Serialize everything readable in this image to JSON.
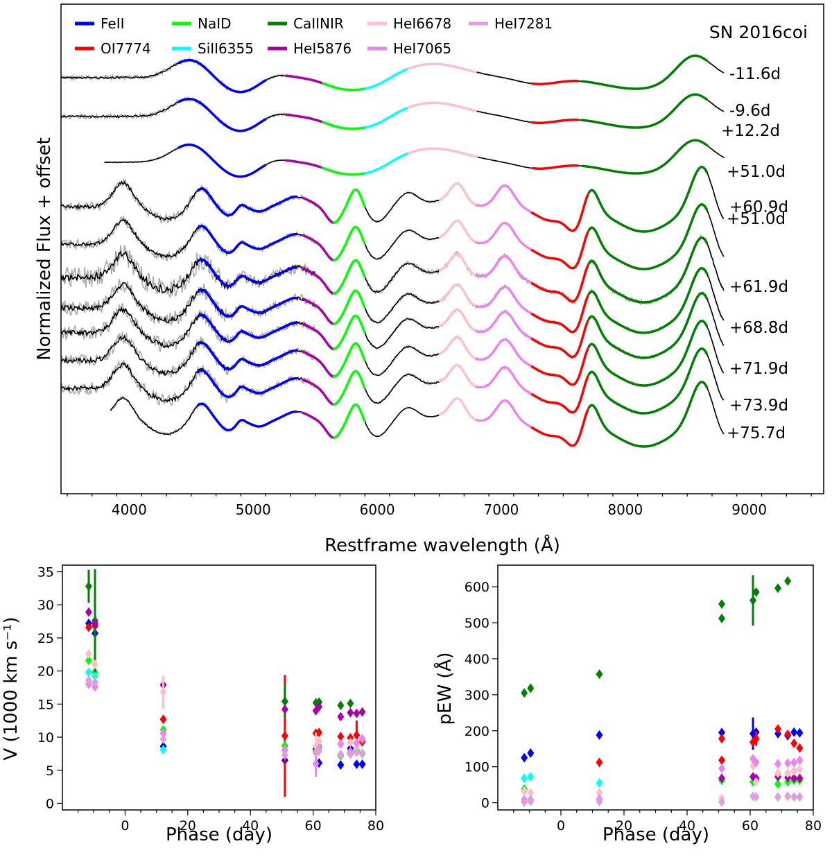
{
  "chart_data": [
    {
      "type": "line",
      "title": "SN 2016coi",
      "xlabel": "Restframe wavelength (Å)",
      "ylabel": "Normalized Flux + offset",
      "xlim": [
        3450,
        9600
      ],
      "xticks": [
        4000,
        5000,
        6000,
        7000,
        8000,
        9000
      ],
      "legend": [
        {
          "name": "FeII",
          "color": "#0000ff"
        },
        {
          "name": "OI7774",
          "color": "#ff0000"
        },
        {
          "name": "NaID",
          "color": "#00ff00"
        },
        {
          "name": "SiII6355",
          "color": "#00ffff"
        },
        {
          "name": "CaIINIR",
          "color": "#008000"
        },
        {
          "name": "HeI5876",
          "color": "#aa00aa"
        },
        {
          "name": "HeI6678",
          "color": "#ffc0cb"
        },
        {
          "name": "HeI7065",
          "color": "#ee82ee"
        },
        {
          "name": "HeI7281",
          "color": "#dda0dd"
        }
      ],
      "spectra": [
        {
          "label": "-11.6d",
          "start": 3450,
          "end": 8800,
          "noise": 0.3,
          "features": [
            "FeII",
            "HeI5876",
            "NaID",
            "SiII6355",
            "HeI6678",
            "OI7774",
            "CaIINIR"
          ]
        },
        {
          "label": "-9.6d",
          "start": 3450,
          "end": 8800,
          "noise": 0.3,
          "features": [
            "FeII",
            "HeI5876",
            "NaID",
            "SiII6355",
            "HeI6678",
            "OI7774",
            "CaIINIR"
          ]
        },
        {
          "label": "+12.2d",
          "start": 3800,
          "end": 8800,
          "noise": 0.1,
          "features": [
            "FeII",
            "HeI5876",
            "NaID",
            "SiII6355",
            "HeI6678",
            "OI7774",
            "CaIINIR"
          ]
        },
        {
          "label": "+51.0d",
          "start": 3450,
          "end": 8800,
          "noise": 0.6,
          "features": [
            "FeII",
            "HeI5876",
            "NaID",
            "HeI6678",
            "HeI7065",
            "OI7774",
            "CaIINIR"
          ]
        },
        {
          "label": "+60.9d",
          "start": 3450,
          "end": 8800,
          "noise": 0.6,
          "features": [
            "FeII",
            "HeI5876",
            "NaID",
            "HeI6678",
            "HeI7065",
            "OI7774",
            "CaIINIR"
          ]
        },
        {
          "label": "+51.0d",
          "start": 3450,
          "end": 8800,
          "noise": 1.4,
          "features": [
            "FeII",
            "HeI5876",
            "NaID",
            "HeI6678",
            "HeI7065",
            "OI7774",
            "CaIINIR"
          ]
        },
        {
          "label": "+61.9d",
          "start": 3450,
          "end": 8800,
          "noise": 1.0,
          "features": [
            "FeII",
            "HeI5876",
            "NaID",
            "HeI6678",
            "HeI7065",
            "OI7774",
            "CaIINIR"
          ]
        },
        {
          "label": "+68.8d",
          "start": 3450,
          "end": 8800,
          "noise": 0.9,
          "features": [
            "FeII",
            "HeI5876",
            "NaID",
            "HeI6678",
            "HeI7065",
            "OI7774",
            "CaIINIR"
          ]
        },
        {
          "label": "+71.9d",
          "start": 3450,
          "end": 8800,
          "noise": 0.8,
          "features": [
            "FeII",
            "HeI5876",
            "NaID",
            "HeI6678",
            "HeI7065",
            "OI7774",
            "CaIINIR"
          ]
        },
        {
          "label": "+73.9d",
          "start": 3450,
          "end": 8800,
          "noise": 0.8,
          "features": [
            "FeII",
            "HeI5876",
            "NaID",
            "HeI6678",
            "HeI7065",
            "OI7774",
            "CaIINIR"
          ]
        },
        {
          "label": "+75.7d",
          "start": 3850,
          "end": 8800,
          "noise": 0.25,
          "features": [
            "FeII",
            "HeI5876",
            "NaID",
            "HeI6678",
            "HeI7065",
            "OI7774",
            "CaIINIR"
          ]
        }
      ]
    },
    {
      "type": "scatter",
      "xlabel": "Phase (day)",
      "ylabel": "V (1000 km s⁻¹)",
      "xlim": [
        -20,
        80
      ],
      "ylim": [
        -1,
        36
      ],
      "xticks": [
        0,
        20,
        40,
        60,
        80
      ],
      "yticks": [
        0,
        5,
        10,
        15,
        20,
        25,
        30,
        35
      ],
      "series": [
        {
          "name": "FeII",
          "color": "#0000ff",
          "points": [
            [
              -11.6,
              27.2
            ],
            [
              -9.6,
              25.7
            ],
            [
              12.2,
              8.6
            ],
            [
              51.0,
              6.5
            ],
            [
              60.9,
              8.2
            ],
            [
              61.9,
              6.1
            ],
            [
              68.8,
              5.8
            ],
            [
              71.9,
              8.3
            ],
            [
              73.9,
              5.9
            ],
            [
              75.7,
              5.9
            ]
          ],
          "errors": [
            [
              -9.6,
              3.5
            ]
          ]
        },
        {
          "name": "OI7774",
          "color": "#ff0000",
          "points": [
            [
              -11.6,
              26.6
            ],
            [
              -9.6,
              26.8
            ],
            [
              12.2,
              12.7
            ],
            [
              51.0,
              10.2
            ],
            [
              60.9,
              10.6
            ],
            [
              61.9,
              10.7
            ],
            [
              68.8,
              10.1
            ],
            [
              71.9,
              9.9
            ],
            [
              73.9,
              10.3
            ],
            [
              75.7,
              9.3
            ]
          ],
          "errors": [
            [
              51.0,
              9.2
            ],
            [
              73.9,
              2.2
            ]
          ]
        },
        {
          "name": "NaID",
          "color": "#00ff00",
          "points": [
            [
              -11.6,
              21.6
            ],
            [
              -9.6,
              19.8
            ],
            [
              12.2,
              11.1
            ],
            [
              51.0,
              8.7
            ],
            [
              60.9,
              7.9
            ],
            [
              61.9,
              8.6
            ],
            [
              68.8,
              7.2
            ],
            [
              71.9,
              7.6
            ],
            [
              73.9,
              8.0
            ],
            [
              75.7,
              7.5
            ]
          ],
          "errors": []
        },
        {
          "name": "SiII6355",
          "color": "#00ffff",
          "points": [
            [
              -11.6,
              19.8
            ],
            [
              -9.6,
              19.2
            ],
            [
              12.2,
              8.1
            ]
          ],
          "errors": []
        },
        {
          "name": "CaIINIR",
          "color": "#008000",
          "points": [
            [
              -11.6,
              32.8
            ],
            [
              -9.6,
              27.6
            ],
            [
              51.0,
              15.4
            ],
            [
              60.9,
              15.2
            ],
            [
              61.9,
              15.3
            ],
            [
              68.8,
              14.8
            ],
            [
              71.9,
              15.1
            ]
          ],
          "errors": [
            [
              -11.6,
              2.5
            ],
            [
              -9.6,
              7.8
            ],
            [
              51.0,
              2.5
            ]
          ]
        },
        {
          "name": "HeI5876",
          "color": "#aa00aa",
          "points": [
            [
              -11.6,
              28.9
            ],
            [
              -9.6,
              27.2
            ],
            [
              12.2,
              17.9
            ],
            [
              51.0,
              14.2
            ],
            [
              60.9,
              14.0
            ],
            [
              61.9,
              14.6
            ],
            [
              68.8,
              13.1
            ],
            [
              71.9,
              13.7
            ],
            [
              73.9,
              13.6
            ],
            [
              75.7,
              13.8
            ]
          ],
          "errors": []
        },
        {
          "name": "HeI6678",
          "color": "#ffc0cb",
          "points": [
            [
              -11.6,
              22.6
            ],
            [
              -9.6,
              21.0
            ],
            [
              12.2,
              16.8
            ],
            [
              51.0,
              7.9
            ],
            [
              60.9,
              8.7
            ],
            [
              61.9,
              9.4
            ],
            [
              68.8,
              8.9
            ],
            [
              71.9,
              9.2
            ],
            [
              73.9,
              8.4
            ],
            [
              75.7,
              9.8
            ]
          ],
          "errors": [
            [
              12.2,
              2.5
            ],
            [
              60.9,
              2.0
            ]
          ]
        },
        {
          "name": "HeI7065",
          "color": "#ee82ee",
          "points": [
            [
              -11.6,
              18.0
            ],
            [
              -9.6,
              17.6
            ],
            [
              12.2,
              10.6
            ],
            [
              51.0,
              8.1
            ],
            [
              60.9,
              6.0
            ],
            [
              61.9,
              8.3
            ],
            [
              68.8,
              9.0
            ],
            [
              71.9,
              7.8
            ],
            [
              73.9,
              9.1
            ],
            [
              75.7,
              9.7
            ]
          ],
          "errors": [
            [
              60.9,
              2.0
            ]
          ]
        },
        {
          "name": "HeI7281",
          "color": "#dda0dd",
          "points": [
            [
              -11.6,
              18.6
            ],
            [
              -9.6,
              18.3
            ],
            [
              12.2,
              9.7
            ],
            [
              51.0,
              7.3
            ],
            [
              60.9,
              7.6
            ],
            [
              61.9,
              7.9
            ],
            [
              68.8,
              7.4
            ],
            [
              71.9,
              7.4
            ],
            [
              73.9,
              7.7
            ],
            [
              75.7,
              7.6
            ]
          ],
          "errors": []
        }
      ]
    },
    {
      "type": "scatter",
      "xlabel": "Phase (day)",
      "ylabel": "pEW (Å)",
      "xlim": [
        -20,
        80
      ],
      "ylim": [
        -20,
        660
      ],
      "xticks": [
        0,
        20,
        40,
        60,
        80
      ],
      "yticks": [
        0,
        100,
        200,
        300,
        400,
        500,
        600
      ],
      "series": [
        {
          "name": "FeII",
          "color": "#0000ff",
          "points": [
            [
              -11.6,
              125
            ],
            [
              -9.6,
              138
            ],
            [
              12.2,
              188
            ],
            [
              51.0,
              195
            ],
            [
              60.9,
              192
            ],
            [
              61.9,
              196
            ],
            [
              68.8,
              192
            ],
            [
              71.9,
              186
            ],
            [
              73.9,
              196
            ],
            [
              75.7,
              194
            ]
          ],
          "errors": [
            [
              60.9,
              45
            ]
          ]
        },
        {
          "name": "OI7774",
          "color": "#ff0000",
          "points": [
            [
              12.2,
              112
            ],
            [
              51.0,
              178
            ],
            [
              51.0,
              118
            ],
            [
              60.9,
              168
            ],
            [
              61.9,
              178
            ],
            [
              68.8,
              205
            ],
            [
              71.9,
              190
            ],
            [
              73.9,
              165
            ],
            [
              75.7,
              152
            ]
          ],
          "errors": [
            [
              61.9,
              20
            ]
          ]
        },
        {
          "name": "NaID",
          "color": "#00ff00",
          "points": [
            [
              -11.6,
              38
            ],
            [
              51.0,
              62
            ],
            [
              60.9,
              58
            ],
            [
              61.9,
              62
            ],
            [
              68.8,
              52
            ],
            [
              71.9,
              58
            ],
            [
              73.9,
              62
            ],
            [
              75.7,
              62
            ]
          ],
          "errors": []
        },
        {
          "name": "SiII6355",
          "color": "#00ffff",
          "points": [
            [
              -11.6,
              68
            ],
            [
              -9.6,
              72
            ],
            [
              12.2,
              55
            ]
          ],
          "errors": []
        },
        {
          "name": "CaIINIR",
          "color": "#008000",
          "points": [
            [
              -11.6,
              305
            ],
            [
              -9.6,
              318
            ],
            [
              12.2,
              357
            ],
            [
              51.0,
              552
            ],
            [
              51.0,
              512
            ],
            [
              60.9,
              562
            ],
            [
              61.9,
              585
            ],
            [
              68.8,
              596
            ],
            [
              71.9,
              616
            ]
          ],
          "errors": [
            [
              60.9,
              70
            ]
          ]
        },
        {
          "name": "HeI5876",
          "color": "#aa00aa",
          "points": [
            [
              51.0,
              68
            ],
            [
              60.9,
              72
            ],
            [
              61.9,
              68
            ],
            [
              68.8,
              72
            ],
            [
              71.9,
              70
            ],
            [
              73.9,
              68
            ],
            [
              75.7,
              68
            ]
          ],
          "errors": []
        },
        {
          "name": "HeI6678",
          "color": "#ffc0cb",
          "points": [
            [
              -11.6,
              32
            ],
            [
              -9.6,
              28
            ],
            [
              12.2,
              28
            ],
            [
              51.0,
              12
            ],
            [
              60.9,
              102
            ],
            [
              61.9,
              58
            ],
            [
              68.8,
              82
            ],
            [
              71.9,
              82
            ],
            [
              73.9,
              88
            ],
            [
              75.7,
              92
            ]
          ],
          "errors": []
        },
        {
          "name": "HeI7065",
          "color": "#ee82ee",
          "points": [
            [
              -11.6,
              8
            ],
            [
              -9.6,
              8
            ],
            [
              12.2,
              10
            ],
            [
              51.0,
              95
            ],
            [
              60.9,
              122
            ],
            [
              61.9,
              112
            ],
            [
              68.8,
              108
            ],
            [
              71.9,
              110
            ],
            [
              73.9,
              112
            ],
            [
              75.7,
              118
            ]
          ],
          "errors": []
        },
        {
          "name": "HeI7281",
          "color": "#dda0dd",
          "points": [
            [
              -11.6,
              2
            ],
            [
              -9.6,
              4
            ],
            [
              12.2,
              3
            ],
            [
              51.0,
              2
            ],
            [
              60.9,
              18
            ],
            [
              61.9,
              16
            ],
            [
              68.8,
              16
            ],
            [
              71.9,
              18
            ],
            [
              73.9,
              16
            ],
            [
              75.7,
              16
            ]
          ],
          "errors": []
        }
      ]
    }
  ]
}
